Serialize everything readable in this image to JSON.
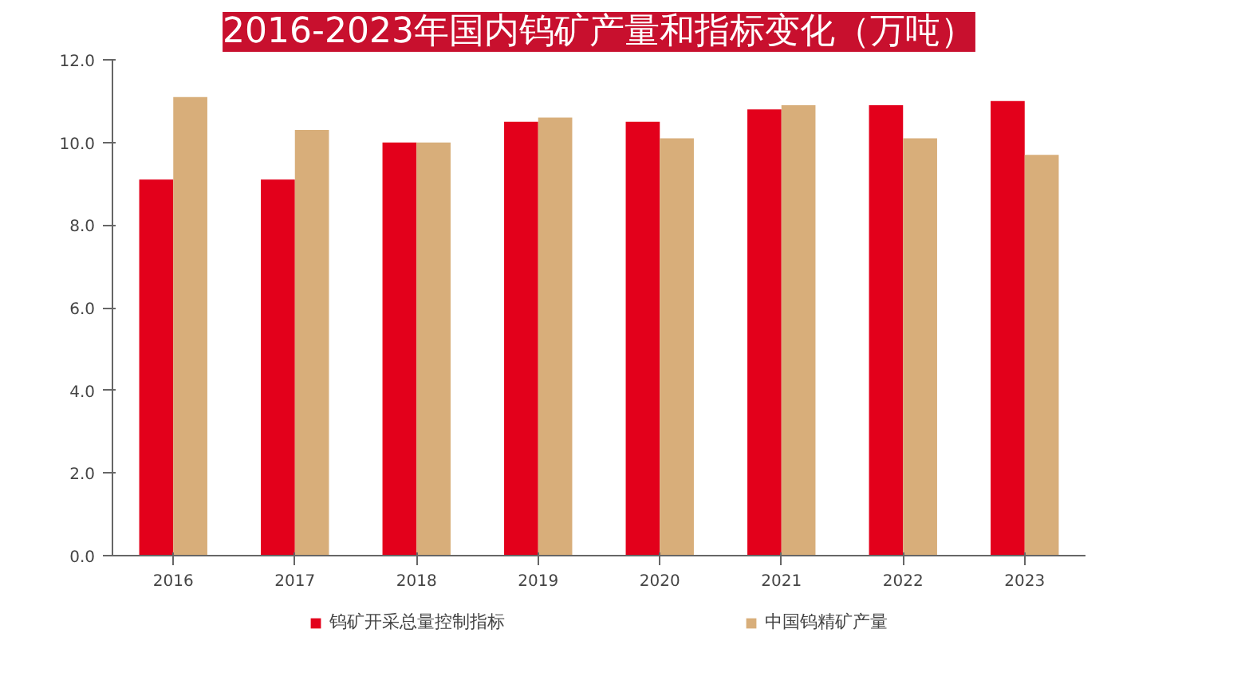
{
  "chart_data": {
    "type": "bar",
    "title": "2016-2023年国内钨矿产量和指标变化（万吨）",
    "categories": [
      "2016",
      "2017",
      "2018",
      "2019",
      "2020",
      "2021",
      "2022",
      "2023"
    ],
    "series": [
      {
        "name": "钨矿开采总量控制指标",
        "color": "#e3001b",
        "values": [
          9.1,
          9.1,
          10.0,
          10.5,
          10.5,
          10.8,
          10.9,
          11.0
        ]
      },
      {
        "name": "中国钨精矿产量",
        "color": "#d8ae7a",
        "values": [
          11.1,
          10.3,
          10.0,
          10.6,
          10.1,
          10.9,
          10.1,
          9.7
        ]
      }
    ],
    "ylim": [
      0,
      12
    ],
    "yticks": [
      {
        "value": 0,
        "label": "0.0"
      },
      {
        "value": 2,
        "label": "2.0"
      },
      {
        "value": 4,
        "label": "4.0"
      },
      {
        "value": 6,
        "label": "6.0"
      },
      {
        "value": 8,
        "label": "8.0"
      },
      {
        "value": 10,
        "label": "10.0"
      },
      {
        "value": 12,
        "label": "12.0"
      }
    ],
    "grid": false,
    "legend": "bottom"
  }
}
